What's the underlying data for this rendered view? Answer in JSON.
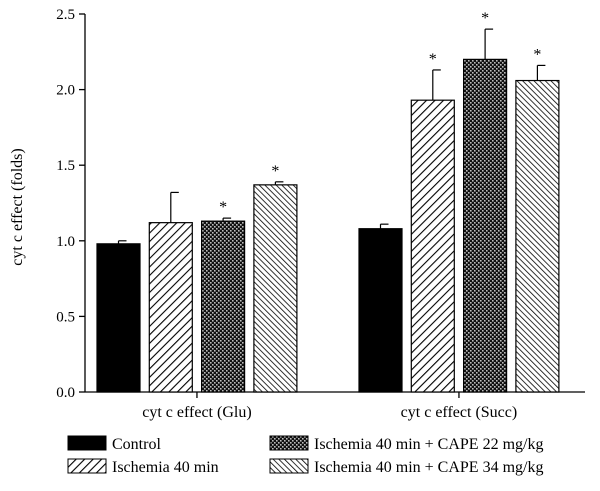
{
  "chart_data": {
    "type": "bar",
    "ylabel": "cyt c effect (folds)",
    "xlabel": "",
    "ylim": [
      0,
      2.5
    ],
    "yticks": [
      "0.0",
      "0.5",
      "1.0",
      "1.5",
      "2.0",
      "2.5"
    ],
    "ytick_values": [
      0,
      0.5,
      1.0,
      1.5,
      2.0,
      2.5
    ],
    "categories": [
      "cyt c effect (Glu)",
      "cyt c effect (Succ)"
    ],
    "legend_position": "bottom",
    "grid": false,
    "series": [
      {
        "name": "Control",
        "values": [
          0.98,
          1.08
        ],
        "errors": [
          0.02,
          0.03
        ],
        "significant": [
          false,
          false
        ],
        "pattern": "solid"
      },
      {
        "name": "Ischemia 40 min",
        "values": [
          1.12,
          1.93
        ],
        "errors": [
          0.2,
          0.2
        ],
        "significant": [
          false,
          true
        ],
        "pattern": "diagonal"
      },
      {
        "name": "Ischemia 40 min + CAPE 22 mg/kg",
        "values": [
          1.13,
          2.2
        ],
        "errors": [
          0.02,
          0.2
        ],
        "significant": [
          true,
          true
        ],
        "pattern": "crosshatch"
      },
      {
        "name": "Ischemia 40 min + CAPE 34 mg/kg",
        "values": [
          1.37,
          2.06
        ],
        "errors": [
          0.02,
          0.1
        ],
        "significant": [
          true,
          true
        ],
        "pattern": "dense-diagonal"
      }
    ],
    "significance_marker": "*"
  }
}
